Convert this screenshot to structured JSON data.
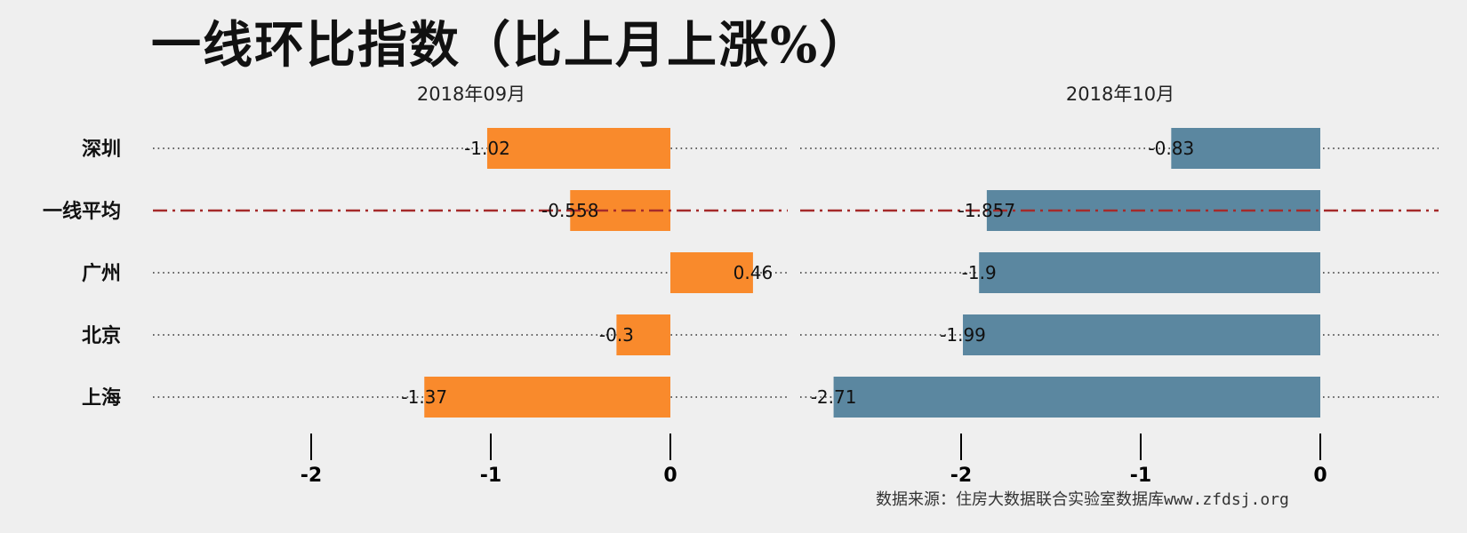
{
  "page": {
    "title": "一线环比指数（比上月上涨%）",
    "source": "数据来源：住房大数据联合实验室数据库www.zfdsj.org"
  },
  "chart_data": {
    "type": "bar",
    "orientation": "horizontal",
    "title": "一线环比指数（比上月上涨%）",
    "categories": [
      "深圳",
      "一线平均",
      "广州",
      "北京",
      "上海"
    ],
    "panels": [
      {
        "name": "2018年09月",
        "color": "#F98A2C",
        "values": [
          -1.02,
          -0.558,
          0.46,
          -0.3,
          -1.37
        ],
        "labels": [
          "-1.02",
          "-0.558",
          "0.46",
          "-0.3",
          "-1.37"
        ],
        "ticks": [
          -2,
          -1,
          0
        ],
        "tick_labels": [
          "-2",
          "-1",
          "0"
        ],
        "xlim": [
          -2.1,
          0.65
        ]
      },
      {
        "name": "2018年10月",
        "color": "#5B87A0",
        "values": [
          -0.83,
          -1.857,
          -1.9,
          -1.99,
          -2.71
        ],
        "labels": [
          "-0.83",
          "-1.857",
          "-1.9",
          "-1.99",
          "-2.71"
        ],
        "ticks": [
          -2,
          -1,
          0
        ],
        "tick_labels": [
          "-2",
          "-1",
          "0"
        ],
        "xlim": [
          -2.85,
          0.65
        ]
      }
    ],
    "reference_category": "一线平均",
    "reference_color": "#A52A2A",
    "grid": "dotted horizontal",
    "legend": "none"
  }
}
